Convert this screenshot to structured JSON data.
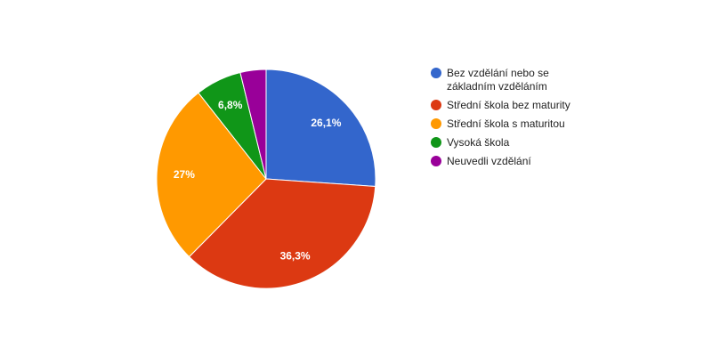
{
  "chart_data": {
    "type": "pie",
    "categories": [
      "Bez vzdělání nebo se základním vzděláním",
      "Střední škola bez maturity",
      "Střední škola s maturitou",
      "Vysoká škola",
      "Neuvedli vzdělání"
    ],
    "values": [
      26.1,
      36.3,
      27.0,
      6.8,
      3.8
    ],
    "value_labels": [
      "26,1%",
      "36,3%",
      "27%",
      "6,8%",
      ""
    ],
    "legend_lines": [
      [
        "Bez vzdělání nebo se",
        "základním vzděláním"
      ],
      [
        "Střední škola bez maturity"
      ],
      [
        "Střední škola s maturitou"
      ],
      [
        "Vysoká škola"
      ],
      [
        "Neuvedli vzdělání"
      ]
    ],
    "colors": [
      "#3366cc",
      "#dc3912",
      "#ff9900",
      "#109618",
      "#990099"
    ],
    "legend_position": "right",
    "start_angle": "top",
    "direction": "clockwise"
  }
}
